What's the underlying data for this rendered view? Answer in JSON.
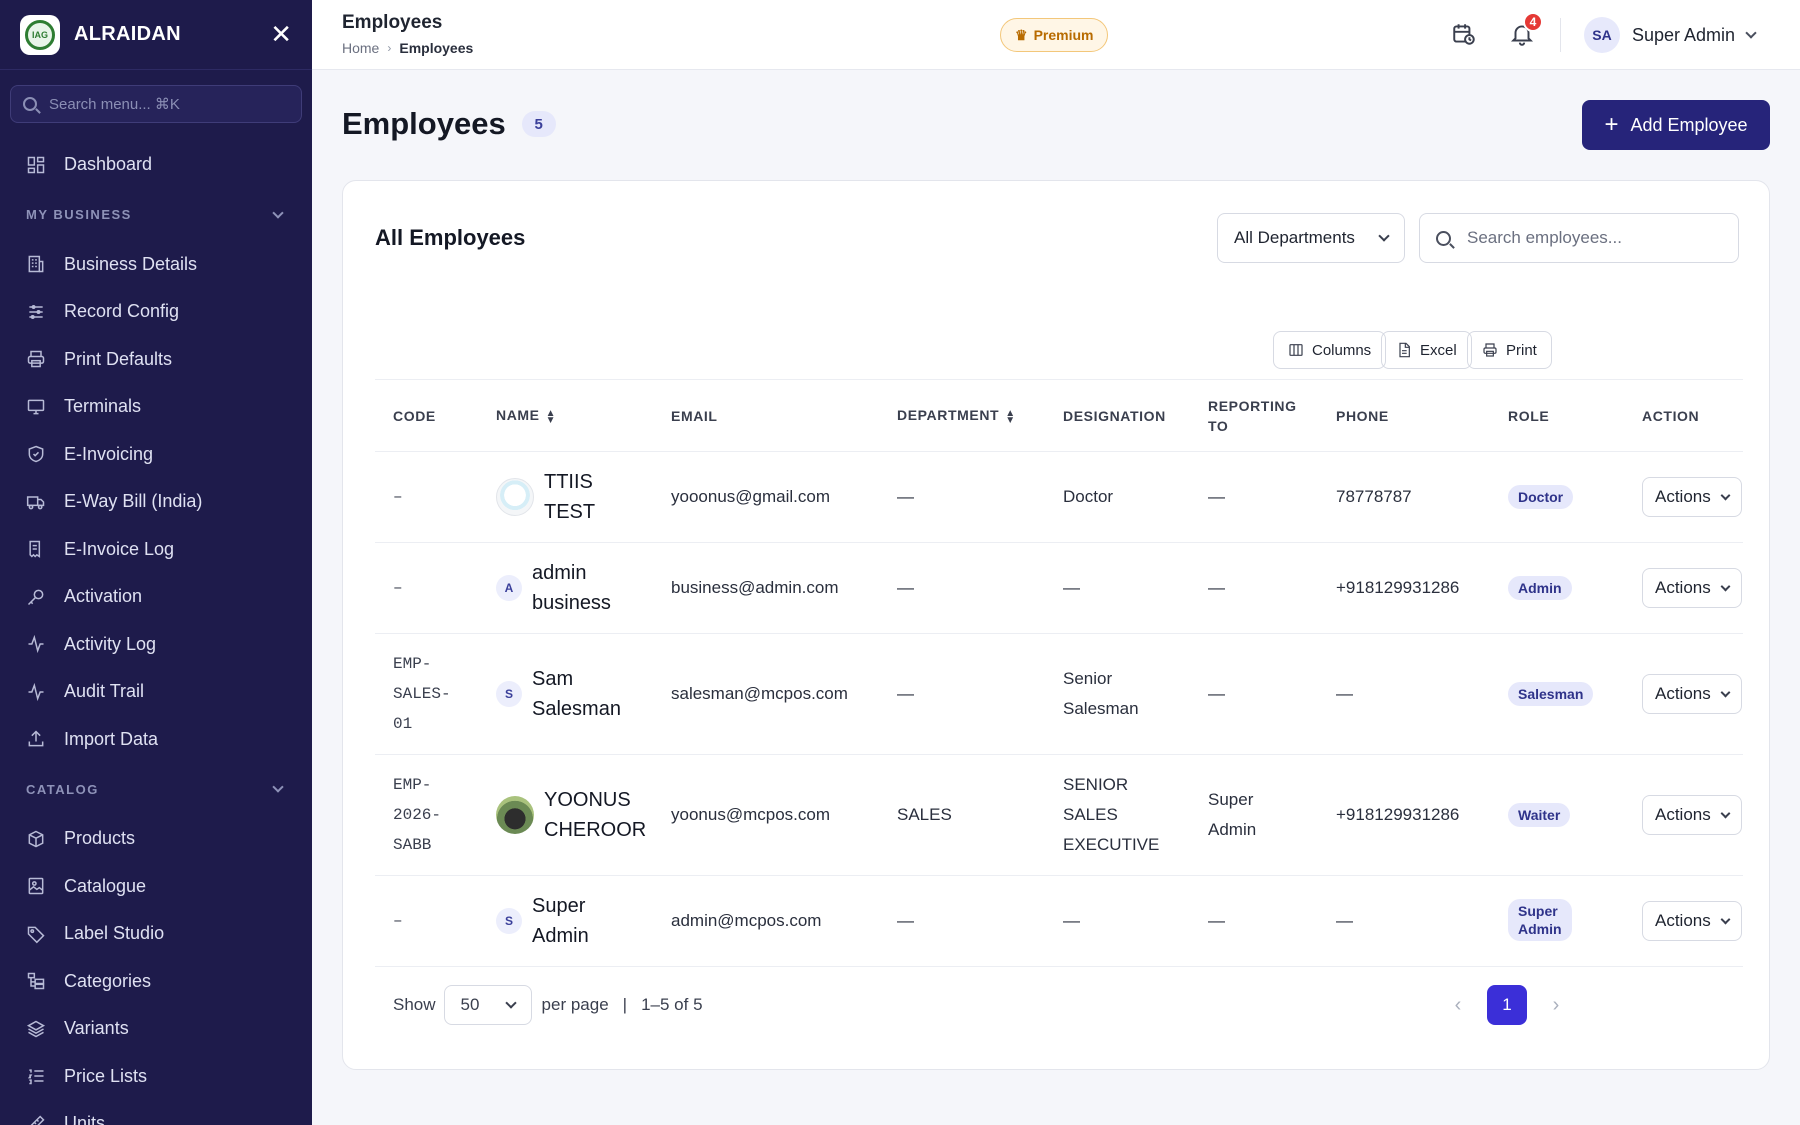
{
  "app": {
    "brand_name": "ALRAIDAN",
    "logo_text": "IAG"
  },
  "sidebar": {
    "search_placeholder": "Search menu... ⌘K",
    "top_items": [
      {
        "label": "Dashboard",
        "icon": "dashboard-icon"
      }
    ],
    "sections": [
      {
        "title": "MY BUSINESS",
        "items": [
          {
            "label": "Business Details",
            "icon": "building-icon"
          },
          {
            "label": "Record Config",
            "icon": "sliders-icon"
          },
          {
            "label": "Print Defaults",
            "icon": "printer-icon"
          },
          {
            "label": "Terminals",
            "icon": "monitor-icon"
          },
          {
            "label": "E-Invoicing",
            "icon": "shield-check-icon"
          },
          {
            "label": "E-Way Bill (India)",
            "icon": "truck-icon"
          },
          {
            "label": "E-Invoice Log",
            "icon": "receipt-icon"
          },
          {
            "label": "Activation",
            "icon": "key-icon"
          },
          {
            "label": "Activity Log",
            "icon": "activity-icon"
          },
          {
            "label": "Audit Trail",
            "icon": "activity-icon"
          },
          {
            "label": "Import Data",
            "icon": "upload-icon"
          }
        ]
      },
      {
        "title": "CATALOG",
        "items": [
          {
            "label": "Products",
            "icon": "box-icon"
          },
          {
            "label": "Catalogue",
            "icon": "image-icon"
          },
          {
            "label": "Label Studio",
            "icon": "tag-icon"
          },
          {
            "label": "Categories",
            "icon": "categories-icon"
          },
          {
            "label": "Variants",
            "icon": "layers-icon"
          },
          {
            "label": "Price Lists",
            "icon": "list-ordered-icon"
          },
          {
            "label": "Units",
            "icon": "ruler-icon"
          }
        ]
      }
    ]
  },
  "header": {
    "title": "Employees",
    "breadcrumb": {
      "home": "Home",
      "current": "Employees"
    },
    "premium_label": "Premium",
    "notification_count": "4",
    "user": {
      "initials": "SA",
      "name": "Super Admin"
    }
  },
  "page": {
    "title": "Employees",
    "count": "5",
    "add_button": "Add Employee"
  },
  "card": {
    "title": "All Employees",
    "department_filter": "All Departments",
    "search_placeholder": "Search employees...",
    "tools": {
      "columns": "Columns",
      "excel": "Excel",
      "print": "Print"
    }
  },
  "table": {
    "headers": {
      "code": "CODE",
      "name": "NAME",
      "email": "EMAIL",
      "department": "DEPARTMENT",
      "designation": "DESIGNATION",
      "reporting_to_1": "REPORTING",
      "reporting_to_2": "TO",
      "phone": "PHONE",
      "role": "ROLE",
      "actions": "ACTION"
    },
    "rows": [
      {
        "code": "–",
        "name_1": "TTIIS",
        "name_2": "TEST",
        "avatar": "",
        "avatar_type": "img1",
        "email": "yooonus@gmail.com",
        "department": "—",
        "designation_1": "Doctor",
        "designation_2": "",
        "designation_3": "",
        "reporting_1": "—",
        "reporting_2": "",
        "phone": "78778787",
        "role_1": "Doctor",
        "role_2": "",
        "actions": "Actions"
      },
      {
        "code": "–",
        "name_1": "admin",
        "name_2": "business",
        "avatar": "A",
        "avatar_type": "letter",
        "email": "business@admin.com",
        "department": "—",
        "designation_1": "—",
        "designation_2": "",
        "designation_3": "",
        "reporting_1": "—",
        "reporting_2": "",
        "phone": "+918129931286",
        "role_1": "Admin",
        "role_2": "",
        "actions": "Actions"
      },
      {
        "code_1": "EMP-",
        "code_2": "SALES-",
        "code_3": "01",
        "name_1": "Sam",
        "name_2": "Salesman",
        "avatar": "S",
        "avatar_type": "letter",
        "email": "salesman@mcpos.com",
        "department": "—",
        "designation_1": "Senior",
        "designation_2": "Salesman",
        "designation_3": "",
        "reporting_1": "—",
        "reporting_2": "",
        "phone": "—",
        "role_1": "Salesman",
        "role_2": "",
        "actions": "Actions"
      },
      {
        "code_1": "EMP-",
        "code_2": "2026-",
        "code_3": "SABB",
        "name_1": "YOONUS",
        "name_2": "CHEROOR",
        "avatar": "",
        "avatar_type": "img2",
        "email": "yoonus@mcpos.com",
        "department": "SALES",
        "designation_1": "SENIOR",
        "designation_2": "SALES",
        "designation_3": "EXECUTIVE",
        "reporting_1": "Super",
        "reporting_2": "Admin",
        "phone": "+918129931286",
        "role_1": "Waiter",
        "role_2": "",
        "actions": "Actions"
      },
      {
        "code": "–",
        "name_1": "Super",
        "name_2": "Admin",
        "avatar": "S",
        "avatar_type": "letter",
        "email": "admin@mcpos.com",
        "department": "—",
        "designation_1": "—",
        "designation_2": "",
        "designation_3": "",
        "reporting_1": "—",
        "reporting_2": "",
        "phone": "—",
        "role_1": "Super",
        "role_2": "Admin",
        "actions": "Actions"
      }
    ]
  },
  "pagination": {
    "show_label": "Show",
    "per_page_value": "50",
    "per_page_label": "per page",
    "separator": "|",
    "range": "1–5 of 5",
    "current_page": "1",
    "prev_icon": "chevron-left-icon",
    "next_icon": "chevron-right-icon"
  },
  "colors": {
    "sidebar_bg": "#1e1b4b",
    "primary": "#26247a",
    "page_active": "#3b2fd8",
    "premium": "#b86b00",
    "badge_red": "#e53935"
  }
}
